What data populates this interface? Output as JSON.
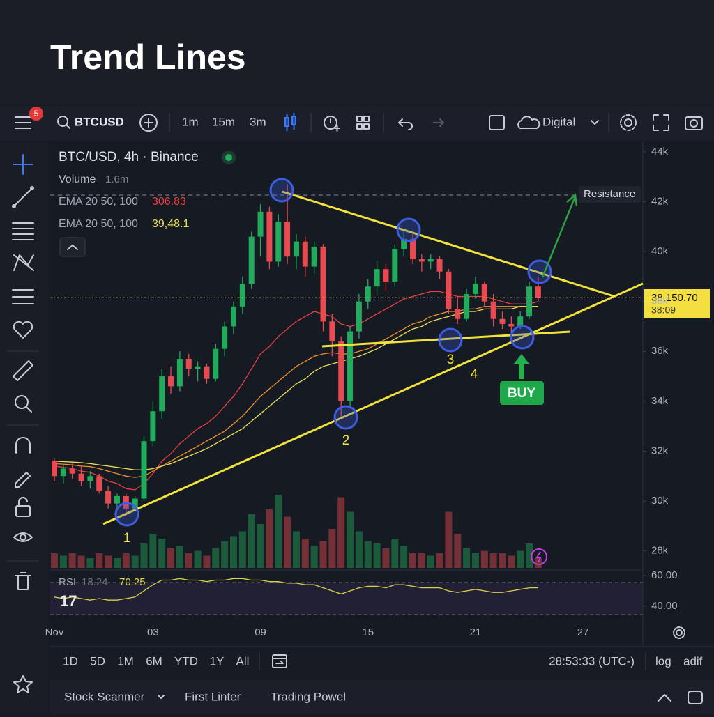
{
  "header": {
    "title": "Trend Lines"
  },
  "toolbar": {
    "badge": "5",
    "symbol": "BTCUSD",
    "intervals": [
      "1m",
      "15m",
      "3m"
    ],
    "chart_style": "Digital"
  },
  "legend": {
    "title": "BTC/USD, 4h · Binance",
    "volume_label": "Volume",
    "volume_value": "1.6m",
    "ema_rows": [
      {
        "label": "EMA 20 50, 100",
        "value": "306.83"
      },
      {
        "label": "EMA 20 50, 100",
        "value": "39,48.1"
      }
    ]
  },
  "annotations": {
    "resistance": "Resistance",
    "buy": "BUY",
    "points": [
      "1",
      "2",
      "3",
      "4"
    ],
    "countdown": "38:09"
  },
  "chart_data": {
    "type": "candlestick",
    "categories": [
      "Nov",
      null,
      null,
      null,
      null,
      null,
      null,
      null,
      null,
      null,
      null,
      "03",
      null,
      null,
      null,
      null,
      null,
      null,
      null,
      null,
      null,
      null,
      null,
      "09",
      null,
      null,
      null,
      null,
      null,
      null,
      null,
      null,
      null,
      null,
      null,
      "15",
      null,
      null,
      null,
      null,
      null,
      null,
      null,
      null,
      null,
      null,
      null,
      "21",
      null,
      null,
      null,
      null,
      null,
      null,
      null,
      null,
      null,
      null,
      null,
      "27"
    ],
    "open": [
      31600,
      31000,
      31300,
      31100,
      30800,
      31000,
      30400,
      29900,
      30200,
      29700,
      30100,
      32400,
      33600,
      35000,
      34600,
      35700,
      35300,
      35400,
      34900,
      36100,
      37000,
      37800,
      38700,
      40600,
      41600,
      39600,
      41200,
      39800,
      40400,
      39400,
      40200,
      37200,
      36400,
      34000,
      36800,
      38000,
      38600,
      39300,
      38800,
      40100,
      40500,
      39700,
      39600,
      39700,
      39200,
      37700,
      37300,
      38300,
      38700,
      38000,
      37300,
      37100,
      37000,
      37400,
      38600,
      null,
      null,
      null,
      null,
      null
    ],
    "high": [
      31700,
      31500,
      31500,
      31400,
      31200,
      31100,
      30600,
      30300,
      30300,
      30200,
      32600,
      34000,
      35300,
      35400,
      36000,
      35900,
      35600,
      35500,
      36300,
      37200,
      38000,
      39000,
      40800,
      41900,
      41800,
      41500,
      42700,
      40700,
      40600,
      40400,
      40300,
      37500,
      36600,
      37000,
      38300,
      38900,
      39600,
      39500,
      40300,
      40900,
      40700,
      39900,
      39900,
      39800,
      39300,
      38200,
      38500,
      39000,
      38800,
      38300,
      37600,
      37400,
      37600,
      38800,
      39000,
      null,
      null,
      null,
      null,
      null
    ],
    "low": [
      30800,
      30700,
      30900,
      30600,
      30500,
      30300,
      29700,
      29700,
      29400,
      29600,
      30000,
      32200,
      33300,
      34300,
      34400,
      35000,
      34800,
      34700,
      34800,
      35800,
      36700,
      37500,
      38500,
      39800,
      39300,
      39400,
      39500,
      39300,
      39000,
      39100,
      36800,
      35800,
      33300,
      33800,
      36500,
      37700,
      38300,
      38400,
      38600,
      39800,
      39500,
      39200,
      39300,
      38900,
      37500,
      37100,
      37200,
      38100,
      37800,
      37000,
      36900,
      36700,
      36900,
      37300,
      38000,
      null,
      null,
      null,
      null,
      null
    ],
    "close": [
      31000,
      31300,
      31100,
      30800,
      31000,
      30400,
      29900,
      30200,
      29700,
      30100,
      32400,
      33600,
      35000,
      34600,
      35700,
      35300,
      35400,
      34900,
      36100,
      37000,
      37800,
      38700,
      40600,
      41600,
      39600,
      41200,
      39800,
      40400,
      39400,
      40200,
      37200,
      36400,
      34000,
      36800,
      38000,
      38600,
      39300,
      38800,
      40100,
      40500,
      39700,
      39600,
      39700,
      39200,
      37700,
      37300,
      38300,
      38700,
      38000,
      37300,
      37100,
      37000,
      37400,
      38600,
      38150.7,
      null,
      null,
      null,
      null,
      null
    ],
    "volume": [
      0.6,
      0.5,
      0.6,
      0.5,
      0.4,
      0.6,
      0.5,
      0.4,
      0.6,
      0.5,
      1.0,
      1.4,
      1.2,
      0.8,
      0.9,
      0.6,
      0.7,
      0.5,
      0.8,
      1.1,
      1.3,
      1.5,
      2.2,
      1.8,
      2.4,
      3.0,
      2.1,
      1.5,
      1.2,
      0.9,
      1.1,
      1.6,
      2.9,
      2.3,
      1.5,
      1.1,
      1.0,
      0.8,
      1.2,
      0.9,
      0.6,
      0.6,
      0.5,
      0.6,
      2.3,
      1.4,
      0.8,
      0.6,
      0.7,
      0.6,
      0.6,
      0.5,
      0.7,
      1.0,
      0.4,
      null,
      null,
      null,
      null,
      null
    ],
    "volume_ylim": [
      0,
      4
    ],
    "overlays": [
      {
        "color": "#e8413f",
        "values": [
          31400,
          31350,
          31300,
          31200,
          31150,
          31000,
          30800,
          30700,
          30500,
          30450,
          30700,
          31100,
          31600,
          31900,
          32300,
          32600,
          32900,
          33100,
          33400,
          33800,
          34200,
          34700,
          35300,
          35900,
          36200,
          36600,
          36900,
          37200,
          37400,
          37600,
          37500,
          37400,
          37100,
          37000,
          37100,
          37300,
          37500,
          37700,
          37900,
          38100,
          38200,
          38300,
          38400,
          38400,
          38300,
          38200,
          38200,
          38200,
          38200,
          38100,
          38000,
          37900,
          37900,
          37900,
          38000,
          null,
          null,
          null,
          null,
          null
        ]
      },
      {
        "color": "#f0902a",
        "values": [
          31500,
          31480,
          31450,
          31400,
          31380,
          31300,
          31200,
          31100,
          31000,
          30950,
          31000,
          31200,
          31400,
          31600,
          31800,
          32000,
          32200,
          32400,
          32600,
          32800,
          33100,
          33400,
          33800,
          34200,
          34500,
          34800,
          35100,
          35400,
          35600,
          35800,
          35900,
          35950,
          35900,
          35900,
          36000,
          36100,
          36300,
          36500,
          36700,
          36900,
          37100,
          37200,
          37400,
          37500,
          37600,
          37600,
          37700,
          37700,
          37800,
          37800,
          37800,
          37800,
          37800,
          37800,
          37800,
          null,
          null,
          null,
          null,
          null
        ]
      },
      {
        "color": "#ece25a",
        "values": [
          31600,
          31580,
          31560,
          31540,
          31500,
          31450,
          31400,
          31350,
          31300,
          31250,
          31250,
          31300,
          31400,
          31500,
          31650,
          31800,
          31950,
          32100,
          32300,
          32500,
          32700,
          32900,
          33200,
          33500,
          33800,
          34100,
          34400,
          34700,
          34900,
          35200,
          35400,
          35500,
          35600,
          35700,
          35800,
          35950,
          36100,
          36300,
          36500,
          36700,
          36900,
          37000,
          37200,
          37300,
          37400,
          37500,
          37600,
          37600,
          37700,
          37700,
          37700,
          37700,
          37800,
          37800,
          37800,
          null,
          null,
          null,
          null,
          null
        ]
      }
    ],
    "up_color": "#22ab5c",
    "down_color": "#e84a4f",
    "ylim": [
      27320,
      44360
    ],
    "yticks": [
      {
        "value": 28000,
        "label": "28k"
      },
      {
        "value": 30000,
        "label": "30k"
      },
      {
        "value": 32000,
        "label": "32k"
      },
      {
        "value": 34000,
        "label": "34k"
      },
      {
        "value": 36000,
        "label": "36k"
      },
      {
        "value": 38000,
        "label": "38k"
      },
      {
        "value": 40000,
        "label": "40k"
      },
      {
        "value": 42000,
        "label": "42k"
      },
      {
        "value": 44000,
        "label": "44k"
      }
    ],
    "last_price": 38150.7,
    "last_price_label": "38,150.70",
    "rsi": {
      "label": "RSI",
      "value_a": "18.24",
      "value_b": "70.25",
      "color": "#d9cf4a",
      "values": [
        46,
        45,
        46,
        45,
        44,
        45,
        44,
        44,
        45,
        46,
        50,
        54,
        57,
        57,
        58,
        57,
        57,
        56,
        57,
        57,
        58,
        58,
        57,
        57,
        56,
        56,
        55,
        55,
        54,
        54,
        52,
        50,
        48,
        50,
        52,
        53,
        53,
        52,
        54,
        54,
        53,
        52,
        52,
        52,
        50,
        49,
        50,
        51,
        50,
        49,
        49,
        50,
        51,
        52,
        52,
        null,
        null,
        null,
        null,
        null
      ],
      "ylim": [
        30.9,
        62.7
      ],
      "yticks": [
        {
          "value": 60,
          "label": "60.00"
        },
        {
          "value": 40,
          "label": "40.00"
        }
      ]
    }
  },
  "bottom_bar": {
    "ranges": [
      "1D",
      "5D",
      "1M",
      "6M",
      "YTD",
      "1Y",
      "All"
    ],
    "clock": "28:53:33 (UTC-)",
    "log": "log",
    "auto": "adif"
  },
  "tabs": [
    "Stock Scanmer",
    "First Linter",
    "Trading Powel"
  ]
}
